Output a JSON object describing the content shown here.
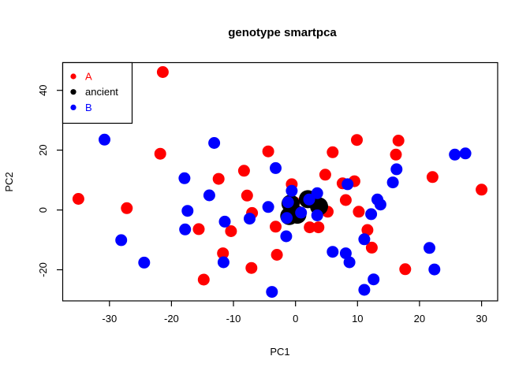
{
  "title": "genotype smartpca",
  "axes": {
    "xlabel": "PC1",
    "ylabel": "PC2"
  },
  "legend": {
    "position": "top-left",
    "items": [
      {
        "label": "A",
        "color": "#FF0000"
      },
      {
        "label": "ancient",
        "color": "#000000"
      },
      {
        "label": "B",
        "color": "#0000FF"
      }
    ]
  },
  "chart_data": {
    "type": "scatter",
    "title": "genotype smartpca",
    "xlabel": "PC1",
    "ylabel": "PC2",
    "xlim": [
      -37.6,
      32.6
    ],
    "ylim": [
      -30.4,
      49.4
    ],
    "x_ticks": [
      -30,
      -20,
      -10,
      0,
      10,
      20,
      30
    ],
    "y_ticks": [
      -20,
      0,
      20,
      40
    ],
    "grid": false,
    "background": "#ffffff",
    "box_color": "#000000",
    "legend_position": "top-left",
    "legend_marker_radius_px": 3.6,
    "series": [
      {
        "name": "A",
        "color": "#FF0000",
        "marker": "filled-circle",
        "marker_radius_px": 7.5,
        "points": [
          [
            -21.4,
            46.1
          ],
          [
            -21.8,
            18.8
          ],
          [
            -35.0,
            3.7
          ],
          [
            -27.2,
            0.6
          ],
          [
            -15.6,
            -6.4
          ],
          [
            -14.8,
            -23.3
          ],
          [
            -4.4,
            19.6
          ],
          [
            -8.3,
            13.1
          ],
          [
            -12.4,
            10.4
          ],
          [
            6.0,
            19.3
          ],
          [
            4.8,
            11.8
          ],
          [
            9.9,
            23.4
          ],
          [
            16.6,
            23.2
          ],
          [
            16.2,
            18.5
          ],
          [
            22.1,
            11.0
          ],
          [
            30.0,
            6.8
          ],
          [
            9.5,
            9.6
          ],
          [
            8.1,
            3.3
          ],
          [
            -7.8,
            4.8
          ],
          [
            -0.6,
            8.6
          ],
          [
            -0.2,
            2.6
          ],
          [
            5.2,
            -0.6
          ],
          [
            10.2,
            -0.6
          ],
          [
            -7.0,
            -1.0
          ],
          [
            -10.4,
            -7.1
          ],
          [
            -3.2,
            -5.6
          ],
          [
            2.3,
            -5.8
          ],
          [
            3.7,
            -5.8
          ],
          [
            11.6,
            -6.7
          ],
          [
            12.3,
            -12.6
          ],
          [
            -11.7,
            -14.5
          ],
          [
            -3.0,
            -15.0
          ],
          [
            -7.1,
            -19.4
          ],
          [
            17.7,
            -19.8
          ],
          [
            7.6,
            8.9
          ]
        ]
      },
      {
        "name": "ancient",
        "color": "#000000",
        "marker": "filled-circle",
        "marker_radius_px": 11.5,
        "points": [
          [
            -0.8,
            2.1
          ],
          [
            2.0,
            3.6
          ],
          [
            0.3,
            -1.6
          ],
          [
            3.8,
            1.2
          ],
          [
            -1.0,
            -2.0
          ]
        ]
      },
      {
        "name": "B",
        "color": "#0000FF",
        "marker": "filled-circle",
        "marker_radius_px": 7.5,
        "points": [
          [
            -30.8,
            23.5
          ],
          [
            -17.9,
            10.6
          ],
          [
            -13.1,
            22.4
          ],
          [
            -3.2,
            14.0
          ],
          [
            16.3,
            13.6
          ],
          [
            25.7,
            18.5
          ],
          [
            27.4,
            18.9
          ],
          [
            15.7,
            9.2
          ],
          [
            8.4,
            8.6
          ],
          [
            -17.4,
            -0.3
          ],
          [
            -17.8,
            -6.5
          ],
          [
            -13.9,
            4.9
          ],
          [
            -28.1,
            -10.1
          ],
          [
            -24.4,
            -17.6
          ],
          [
            -0.6,
            6.4
          ],
          [
            3.5,
            5.6
          ],
          [
            -1.2,
            2.6
          ],
          [
            2.2,
            3.5
          ],
          [
            0.9,
            -0.9
          ],
          [
            -1.4,
            -2.7
          ],
          [
            3.5,
            -1.8
          ],
          [
            -4.4,
            1.0
          ],
          [
            -7.4,
            -2.9
          ],
          [
            -11.4,
            -3.9
          ],
          [
            -1.5,
            -8.8
          ],
          [
            -3.8,
            -27.4
          ],
          [
            -11.6,
            -17.5
          ],
          [
            6.0,
            -14.0
          ],
          [
            8.1,
            -14.5
          ],
          [
            8.7,
            -17.5
          ],
          [
            13.2,
            3.5
          ],
          [
            13.7,
            1.8
          ],
          [
            12.2,
            -1.4
          ],
          [
            11.1,
            -9.8
          ],
          [
            21.6,
            -12.7
          ],
          [
            22.4,
            -19.9
          ],
          [
            12.6,
            -23.2
          ],
          [
            11.1,
            -26.7
          ]
        ]
      }
    ]
  }
}
